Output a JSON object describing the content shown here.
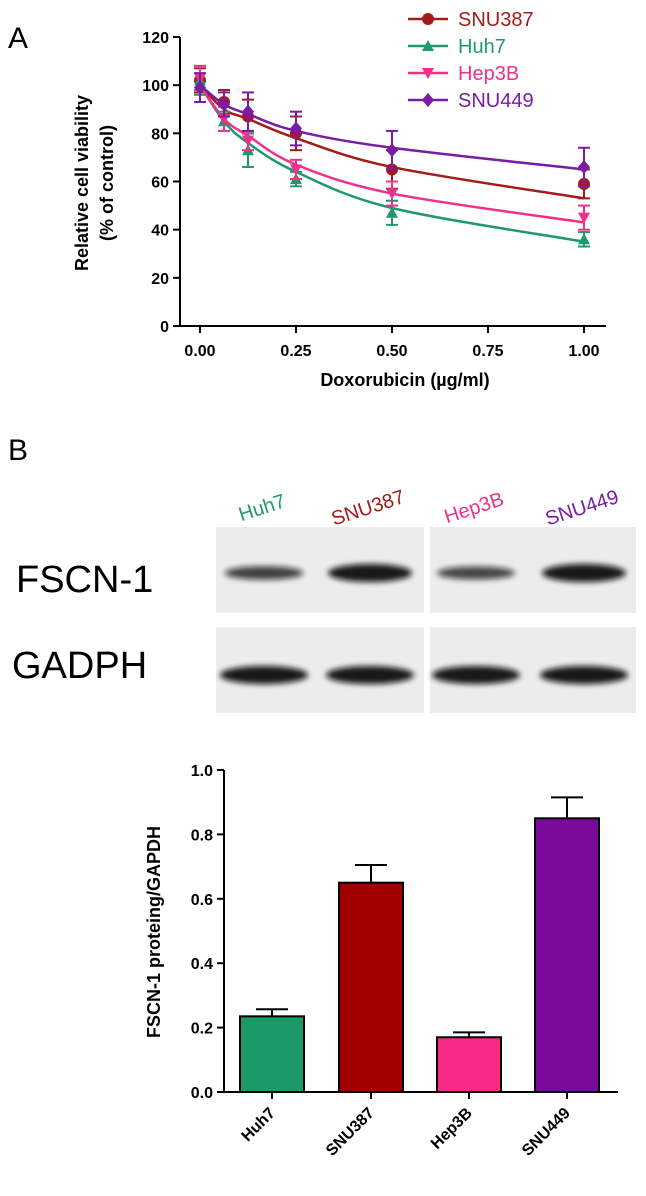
{
  "panels": {
    "a_label": "A",
    "b_label": "B"
  },
  "chart_data": [
    {
      "type": "line",
      "xlabel": "Doxorubicin (µg/ml)",
      "ylabel_line1": "Relative cell viability",
      "ylabel_line2": "(% of control)",
      "xlim": [
        0,
        1.05
      ],
      "ylim": [
        0,
        120
      ],
      "xticks": [
        0,
        0.25,
        0.5,
        0.75,
        1.0
      ],
      "xtick_labels": [
        "0.00",
        "0.25",
        "0.50",
        "0.75",
        "1.00"
      ],
      "yticks": [
        0,
        20,
        40,
        60,
        80,
        100,
        120
      ],
      "ytick_labels": [
        "0",
        "20",
        "40",
        "60",
        "80",
        "100",
        "120"
      ],
      "grid": false,
      "legend_position": "top-right",
      "x": [
        0,
        0.0625,
        0.125,
        0.25,
        0.5,
        1.0
      ],
      "series": [
        {
          "name": "SNU387",
          "color": "#a31b1b",
          "marker": "circle",
          "values": [
            102,
            93,
            87,
            80,
            65,
            59
          ],
          "errors": [
            5,
            5,
            7,
            7,
            8,
            6
          ],
          "fit": [
            100,
            90,
            86,
            78,
            66,
            53
          ]
        },
        {
          "name": "Huh7",
          "color": "#1e9a6a",
          "marker": "triangle-up",
          "values": [
            102,
            85,
            73,
            61,
            47,
            36
          ],
          "errors": [
            6,
            4,
            7,
            3,
            5,
            3
          ],
          "fit": [
            100,
            85,
            76,
            64,
            49,
            35
          ]
        },
        {
          "name": "Hep3B",
          "color": "#f0308a",
          "marker": "triangle-down",
          "values": [
            103,
            86,
            77,
            65,
            55,
            45
          ],
          "errors": [
            5,
            5,
            4,
            4,
            5,
            5
          ],
          "fit": [
            100,
            86,
            79,
            67,
            55,
            43
          ]
        },
        {
          "name": "SNU449",
          "color": "#7a1ca6",
          "marker": "diamond",
          "values": [
            99,
            92,
            89,
            82,
            73,
            66
          ],
          "errors": [
            6,
            5,
            8,
            7,
            8,
            8
          ],
          "fit": [
            100,
            92,
            88,
            81,
            74,
            65
          ]
        }
      ]
    },
    {
      "type": "bar",
      "ylabel": "FSCN-1 proteing/GAPDH",
      "ylim": [
        0,
        1.0
      ],
      "yticks": [
        0,
        0.2,
        0.4,
        0.6,
        0.8,
        1.0
      ],
      "ytick_labels": [
        "0.0",
        "0.2",
        "0.4",
        "0.6",
        "0.8",
        "1.0"
      ],
      "grid": false,
      "categories": [
        "Huh7",
        "SNU387",
        "Hep3B",
        "SNU449"
      ],
      "values": [
        0.235,
        0.65,
        0.17,
        0.85
      ],
      "errors": [
        0.022,
        0.055,
        0.015,
        0.065
      ],
      "colors": [
        "#1a9a68",
        "#a00000",
        "#f72a87",
        "#7a0a9a"
      ]
    }
  ],
  "western_blot": {
    "lanes": [
      {
        "name": "Huh7",
        "color": "#1e9a6a",
        "fscn": 0.55,
        "gadph": 1.0
      },
      {
        "name": "SNU387",
        "color": "#a31b1b",
        "fscn": 1.0,
        "gadph": 1.0
      },
      {
        "name": "Hep3B",
        "color": "#f0308a",
        "fscn": 0.5,
        "gadph": 1.0
      },
      {
        "name": "SNU449",
        "color": "#7a1ca6",
        "fscn": 1.0,
        "gadph": 1.0
      }
    ],
    "rows": {
      "fscn_label": "FSCN-1",
      "gadph_label": "GADPH"
    }
  }
}
